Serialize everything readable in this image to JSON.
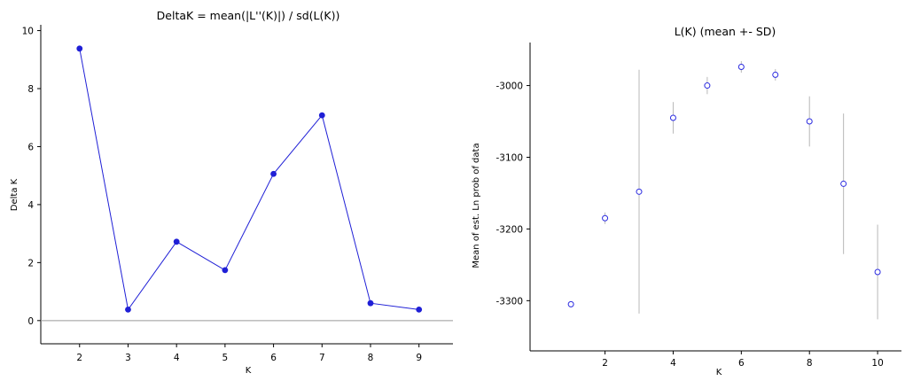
{
  "chart_data": [
    {
      "type": "line",
      "title": "DeltaK = mean(|L''(K)|) / sd(L(K))",
      "xlabel": "K",
      "ylabel": "Delta K",
      "x": [
        2,
        3,
        4,
        5,
        6,
        7,
        8,
        9
      ],
      "y": [
        9.38,
        0.38,
        2.72,
        1.74,
        5.06,
        7.08,
        0.6,
        0.38
      ],
      "xlim": [
        1.2,
        9.7
      ],
      "ylim": [
        -0.8,
        10.2
      ],
      "xticks": [
        "2",
        "3",
        "4",
        "5",
        "6",
        "7",
        "8",
        "9"
      ],
      "yticks": [
        "0",
        "2",
        "4",
        "6",
        "8",
        "10"
      ],
      "zero_line": true,
      "color": "#1f1fd6",
      "grid": false
    },
    {
      "type": "scatter",
      "title": "L(K) (mean +- SD)",
      "xlabel": "K",
      "ylabel": "Mean of est. Ln prob of data",
      "x": [
        1,
        2,
        3,
        4,
        5,
        6,
        7,
        8,
        9,
        10
      ],
      "mean": [
        -3305,
        -3185,
        -3148,
        -3045,
        -3000,
        -2974,
        -2985,
        -3050,
        -3137,
        -3260
      ],
      "sd": [
        0,
        8,
        170,
        22,
        12,
        8,
        8,
        35,
        98,
        66
      ],
      "xlim": [
        -0.2,
        10.7
      ],
      "ylim": [
        -3370,
        -2940
      ],
      "xticks": [
        "2",
        "4",
        "6",
        "8",
        "10"
      ],
      "yticks": [
        "-3300",
        "-3200",
        "-3100",
        "-3000"
      ],
      "marker_color": "#2a2ae0",
      "errorbar_color": "#b8b8b8",
      "grid": false
    }
  ]
}
